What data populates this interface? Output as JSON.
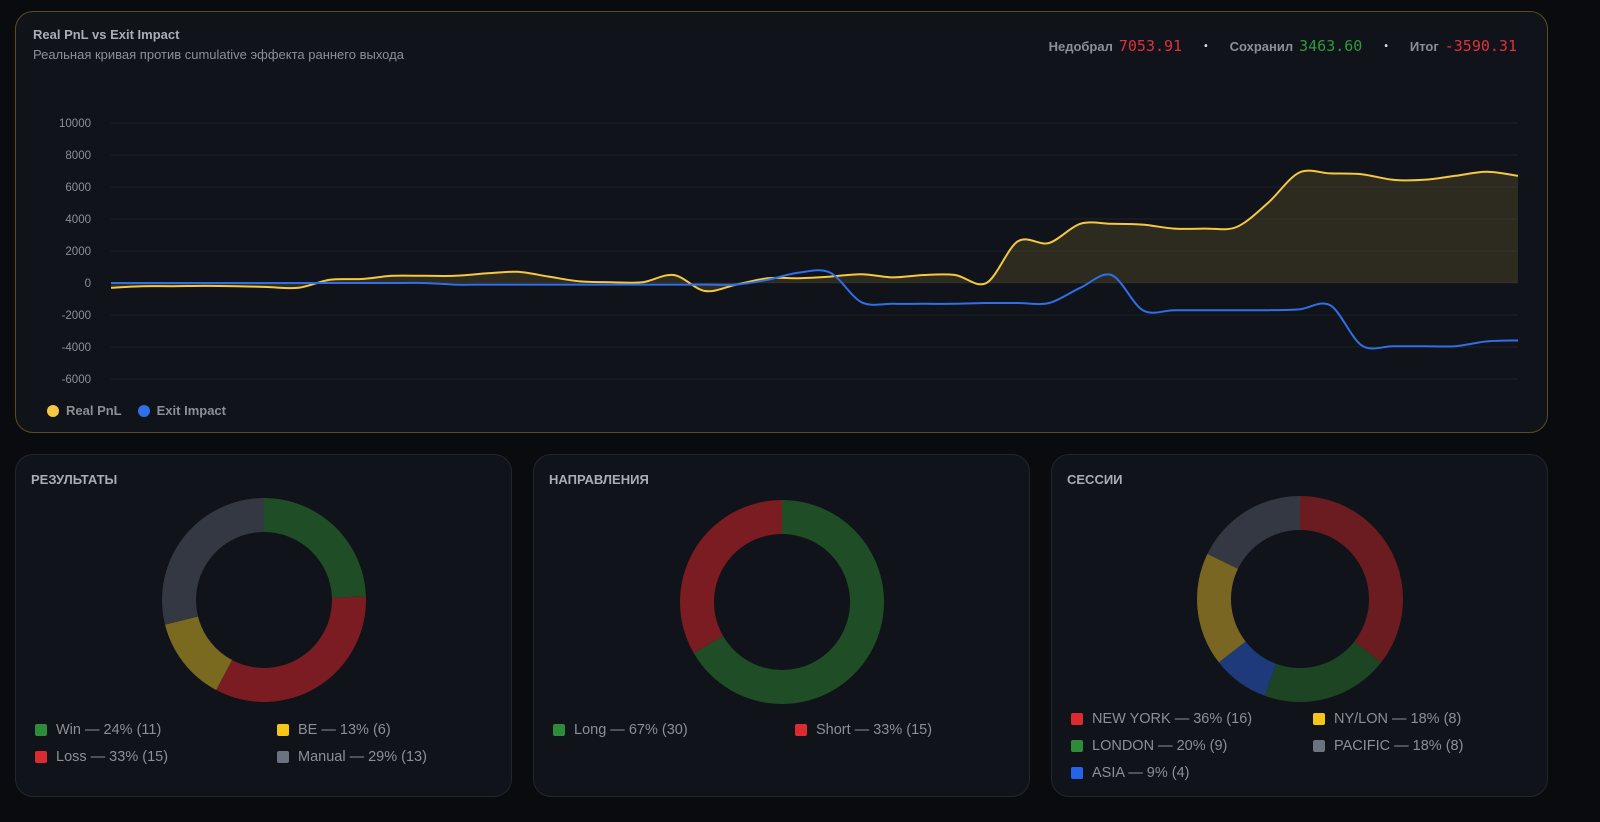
{
  "main": {
    "title": "Real PnL vs Exit Impact",
    "subtitle": "Реальная кривая против cumulative эффекта раннего выхода",
    "stats": [
      {
        "label": "Недобрал",
        "value": "7053.91",
        "color": "#e0313a"
      },
      {
        "label": "Сохранил",
        "value": "3463.60",
        "color": "#2f9a3a"
      },
      {
        "label": "Итог",
        "value": "-3590.31",
        "color": "#e0313a"
      }
    ]
  },
  "chart_data": [
    {
      "type": "line",
      "title": "Real PnL vs Exit Impact",
      "ylim": [
        -6000,
        10000
      ],
      "yticks": [
        "10000",
        "8000",
        "6000",
        "4000",
        "2000",
        "0",
        "-2000",
        "-4000",
        "-6000"
      ],
      "grid": true,
      "legend_position": "bottom-left",
      "series": [
        {
          "name": "Real PnL",
          "color": "#f5c842",
          "fill": true,
          "values": [
            -300,
            -200,
            -200,
            -180,
            -200,
            -250,
            -300,
            200,
            250,
            450,
            450,
            450,
            600,
            700,
            400,
            100,
            50,
            50,
            500,
            -500,
            -100,
            300,
            300,
            400,
            550,
            350,
            500,
            500,
            0,
            2600,
            2500,
            3700,
            3700,
            3650,
            3400,
            3400,
            3500,
            5000,
            6900,
            6850,
            6800,
            6450,
            6450,
            6700,
            6950,
            6700
          ]
        },
        {
          "name": "Exit Impact",
          "color": "#2f6fe8",
          "fill": false,
          "values": [
            0,
            0,
            0,
            0,
            0,
            0,
            0,
            0,
            0,
            0,
            0,
            -100,
            -100,
            -100,
            -100,
            -100,
            -100,
            -100,
            -100,
            -100,
            -100,
            200,
            650,
            650,
            -1200,
            -1300,
            -1300,
            -1300,
            -1250,
            -1250,
            -1250,
            -300,
            500,
            -1700,
            -1700,
            -1700,
            -1700,
            -1700,
            -1650,
            -1400,
            -3900,
            -3950,
            -3950,
            -3950,
            -3650,
            -3590
          ]
        }
      ]
    },
    {
      "type": "pie",
      "title": "РЕЗУЛЬТАТЫ",
      "items": [
        {
          "label": "Win — 24% (11)",
          "value": 11,
          "color": "#1f4d25",
          "swatch": "#2e8b3a"
        },
        {
          "label": "Loss — 33% (15)",
          "value": 15,
          "color": "#7a1c21",
          "swatch": "#dc2b30"
        },
        {
          "label": "BE — 13% (6)",
          "value": 6,
          "color": "#7a6a1f",
          "swatch": "#f5c518"
        },
        {
          "label": "Manual — 29% (13)",
          "value": 13,
          "color": "#343842",
          "swatch": "#6b7280"
        }
      ]
    },
    {
      "type": "pie",
      "title": "НАПРАВЛЕНИЯ",
      "items": [
        {
          "label": "Long — 67% (30)",
          "value": 30,
          "color": "#1f4d25",
          "swatch": "#2e8b3a"
        },
        {
          "label": "Short — 33% (15)",
          "value": 15,
          "color": "#7a1c21",
          "swatch": "#dc2b30"
        }
      ]
    },
    {
      "type": "pie",
      "title": "СЕССИИ",
      "items": [
        {
          "label": "NEW YORK — 36% (16)",
          "value": 16,
          "color": "#6b1c21",
          "swatch": "#dc2b30"
        },
        {
          "label": "LONDON — 20% (9)",
          "value": 9,
          "color": "#1d4523",
          "swatch": "#2e8b3a"
        },
        {
          "label": "ASIA — 9% (4)",
          "value": 4,
          "color": "#1e3a7a",
          "swatch": "#2563eb"
        },
        {
          "label": "NY/LON — 18% (8)",
          "value": 8,
          "color": "#786622",
          "swatch": "#f5c518"
        },
        {
          "label": "PACIFIC — 18% (8)",
          "value": 8,
          "color": "#343842",
          "swatch": "#6b7280"
        }
      ]
    }
  ]
}
